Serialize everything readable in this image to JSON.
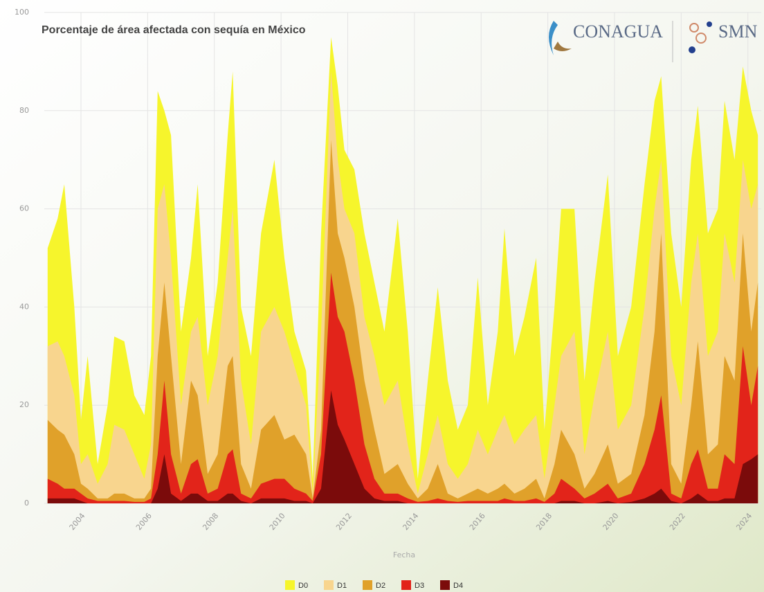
{
  "logos": [
    "CONAGUA",
    "SMN"
  ],
  "chart_data": {
    "type": "area",
    "title": "Porcentaje de área afectada con sequía en México",
    "x_label": "Fecha",
    "x": [
      2003.0,
      2003.3,
      2003.5,
      2003.8,
      2004.0,
      2004.2,
      2004.5,
      2004.8,
      2005.0,
      2005.3,
      2005.6,
      2005.9,
      2006.1,
      2006.3,
      2006.5,
      2006.7,
      2007.0,
      2007.3,
      2007.5,
      2007.8,
      2008.1,
      2008.4,
      2008.55,
      2008.8,
      2009.1,
      2009.4,
      2009.8,
      2010.1,
      2010.4,
      2010.75,
      2010.95,
      2011.2,
      2011.5,
      2011.7,
      2011.9,
      2012.2,
      2012.5,
      2012.8,
      2013.1,
      2013.5,
      2013.8,
      2014.1,
      2014.4,
      2014.7,
      2015.0,
      2015.3,
      2015.6,
      2015.9,
      2016.2,
      2016.5,
      2016.7,
      2017.0,
      2017.3,
      2017.65,
      2017.9,
      2018.2,
      2018.4,
      2018.8,
      2019.1,
      2019.4,
      2019.8,
      2020.1,
      2020.5,
      2020.9,
      2021.2,
      2021.4,
      2021.7,
      2022.0,
      2022.3,
      2022.5,
      2022.8,
      2023.1,
      2023.3,
      2023.6,
      2023.85,
      2024.1,
      2024.3
    ],
    "series": [
      {
        "name": "D0",
        "color": "#f6f52c",
        "values": [
          52,
          58,
          65,
          40,
          17,
          30,
          8,
          20,
          34,
          33,
          22,
          18,
          30,
          84,
          80,
          75,
          35,
          50,
          65,
          30,
          45,
          75,
          88,
          40,
          30,
          55,
          70,
          50,
          35,
          27,
          5,
          55,
          95,
          85,
          72,
          68,
          55,
          45,
          35,
          58,
          35,
          5,
          25,
          44,
          25,
          15,
          20,
          46,
          20,
          35,
          56,
          30,
          38,
          50,
          15,
          40,
          60,
          60,
          25,
          45,
          67,
          30,
          40,
          65,
          82,
          87,
          55,
          40,
          70,
          81,
          55,
          60,
          82,
          70,
          89,
          80,
          75
        ]
      },
      {
        "name": "D1",
        "color": "#f8d58e",
        "values": [
          32,
          33,
          30,
          22,
          8,
          10,
          4,
          8,
          16,
          15,
          10,
          5,
          12,
          60,
          65,
          50,
          20,
          35,
          38,
          20,
          30,
          50,
          60,
          25,
          12,
          35,
          40,
          35,
          28,
          20,
          2,
          35,
          88,
          70,
          60,
          55,
          38,
          30,
          20,
          25,
          12,
          2,
          10,
          18,
          8,
          5,
          8,
          15,
          10,
          15,
          18,
          12,
          15,
          18,
          5,
          20,
          30,
          35,
          10,
          22,
          35,
          15,
          20,
          40,
          60,
          70,
          30,
          20,
          45,
          55,
          30,
          35,
          55,
          45,
          70,
          60,
          65
        ]
      },
      {
        "name": "D2",
        "color": "#e0a12a",
        "values": [
          17,
          15,
          14,
          10,
          4,
          3,
          1,
          1,
          2,
          2,
          1,
          1,
          3,
          30,
          45,
          30,
          8,
          25,
          22,
          6,
          10,
          28,
          30,
          8,
          3,
          15,
          18,
          13,
          14,
          10,
          1,
          15,
          74,
          55,
          50,
          40,
          25,
          15,
          6,
          8,
          4,
          1,
          3,
          8,
          2,
          1,
          2,
          3,
          2,
          3,
          4,
          2,
          3,
          5,
          1,
          8,
          15,
          10,
          3,
          6,
          12,
          4,
          6,
          18,
          35,
          55,
          8,
          4,
          20,
          33,
          10,
          12,
          30,
          25,
          55,
          35,
          45
        ]
      },
      {
        "name": "D3",
        "color": "#e2241a",
        "values": [
          5,
          4,
          3,
          3,
          2,
          1,
          0.5,
          0.5,
          0.5,
          0.5,
          0.3,
          0.3,
          1,
          10,
          25,
          10,
          2,
          8,
          9,
          2,
          3,
          10,
          11,
          2,
          1,
          4,
          5,
          5,
          3,
          2,
          0.5,
          10,
          47,
          38,
          35,
          25,
          12,
          5,
          2,
          2,
          1,
          0.3,
          0.5,
          1,
          0.5,
          0.3,
          0.5,
          0.5,
          0.5,
          0.5,
          1,
          0.5,
          0.5,
          1,
          0.3,
          2,
          5,
          3,
          1,
          2,
          4,
          1,
          2,
          8,
          15,
          22,
          2,
          1,
          8,
          11,
          3,
          3,
          10,
          8,
          32,
          20,
          28
        ]
      },
      {
        "name": "D4",
        "color": "#7b0b0b",
        "values": [
          1,
          1,
          1,
          1,
          0.5,
          0,
          0,
          0,
          0,
          0,
          0,
          0,
          0,
          3,
          10,
          2,
          0.5,
          2,
          2,
          0.5,
          0.5,
          2,
          2,
          0.5,
          0,
          1,
          1,
          1,
          0.5,
          0.5,
          0,
          3,
          23,
          16,
          13,
          8,
          3,
          1,
          0.5,
          0.5,
          0,
          0,
          0,
          0,
          0,
          0,
          0,
          0,
          0,
          0,
          0,
          0,
          0,
          0,
          0,
          0,
          0.5,
          0.5,
          0,
          0,
          0.5,
          0,
          0.3,
          1,
          2,
          3,
          0.5,
          0,
          1,
          2,
          0.5,
          0.5,
          1,
          1,
          8,
          9,
          10
        ]
      }
    ],
    "xlim": [
      2002.9,
      2024.4
    ],
    "xticks": [
      2004,
      2006,
      2008,
      2010,
      2012,
      2014,
      2016,
      2018,
      2020,
      2022,
      2024
    ],
    "ylim": [
      0,
      100
    ],
    "yticks": [
      0,
      20,
      40,
      60,
      80,
      100
    ],
    "grid": true,
    "legend": "bottom"
  }
}
